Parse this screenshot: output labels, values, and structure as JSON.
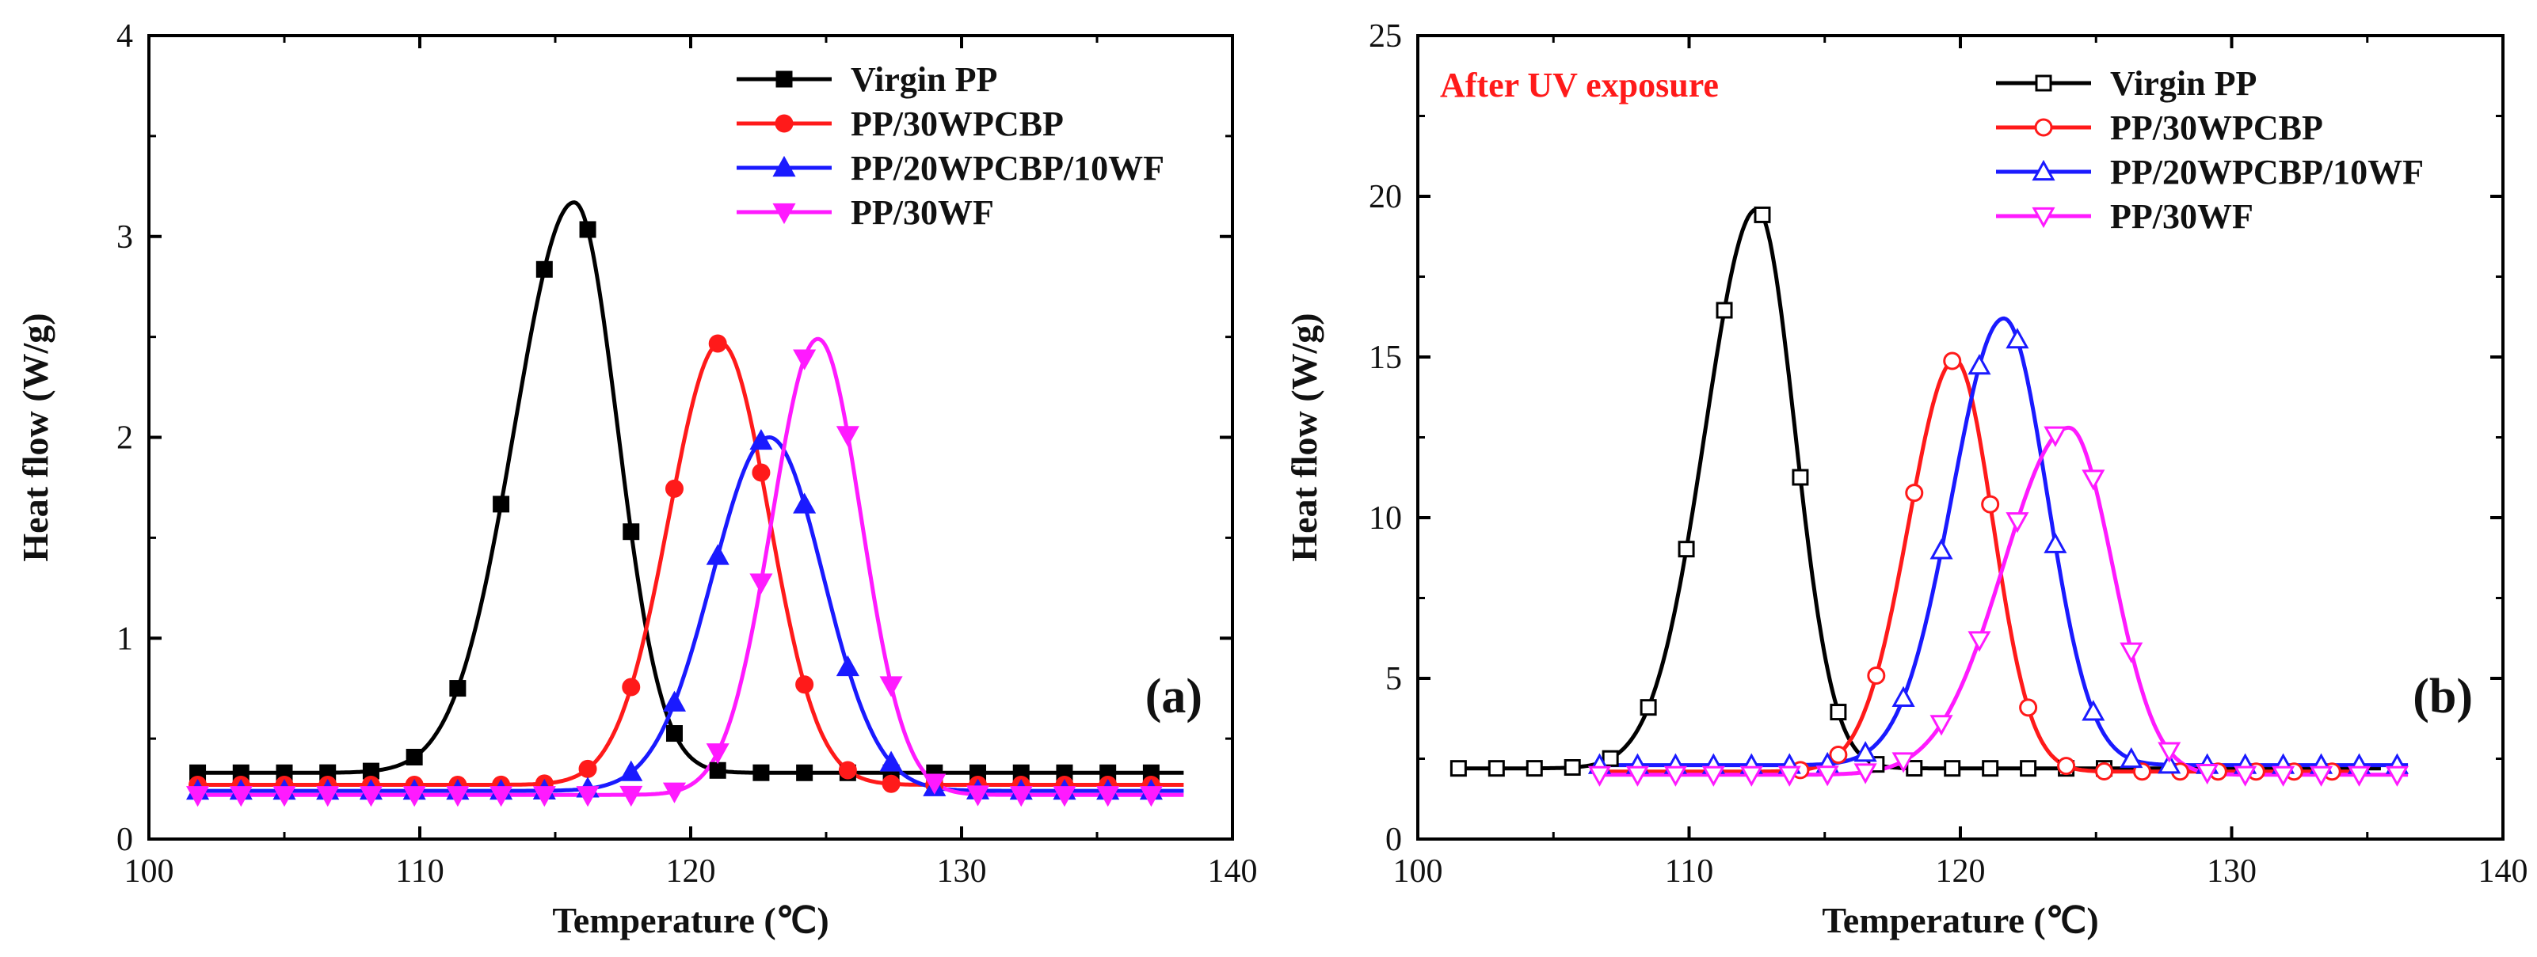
{
  "chart_data": [
    {
      "type": "line",
      "panel_label": "(a)",
      "annotation": "",
      "xlabel": "Temperature (℃)",
      "ylabel": "Heat flow (W/g)",
      "xlim": [
        100,
        140
      ],
      "ylim": [
        0,
        4
      ],
      "xticks": [
        "100",
        "110",
        "120",
        "130",
        "140"
      ],
      "yticks": [
        "0",
        "1",
        "2",
        "3",
        "4"
      ],
      "legend_position": "top-right",
      "series": [
        {
          "name": "Virgin PP",
          "color": "#000000",
          "marker": "square",
          "filled": true,
          "baseline": 0.33,
          "peak": 3.17,
          "peak_x": 115.7,
          "width_left": 2.2,
          "width_right": 1.6,
          "x_range": [
            101.8,
            138.2
          ],
          "marker_step": 1.6,
          "marker_x": [
            101.8,
            103.4,
            105.0,
            106.6,
            108.2,
            109.8,
            111.4,
            113.0,
            114.6,
            116.2,
            117.8,
            119.4,
            121.0,
            122.6,
            124.2,
            125.8,
            127.4,
            129.0,
            130.6,
            132.2,
            133.8,
            135.4,
            137.0
          ]
        },
        {
          "name": "PP/30WPCBP",
          "color": "#ff1a1a",
          "marker": "circle",
          "filled": true,
          "baseline": 0.27,
          "peak": 2.47,
          "peak_x": 121.1,
          "width_left": 1.9,
          "width_right": 1.8,
          "x_range": [
            101.8,
            138.2
          ],
          "marker_step": 1.6,
          "marker_x": [
            101.8,
            103.4,
            105.0,
            106.6,
            108.2,
            109.8,
            111.4,
            113.0,
            114.6,
            116.2,
            117.8,
            119.4,
            121.0,
            122.6,
            124.2,
            125.8,
            127.4,
            129.0,
            130.6,
            132.2,
            133.8,
            135.4,
            137.0
          ]
        },
        {
          "name": "PP/20WPCBP/10WF",
          "color": "#1a1aff",
          "marker": "triangle-up",
          "filled": true,
          "baseline": 0.24,
          "peak": 2.0,
          "peak_x": 122.9,
          "width_left": 2.1,
          "width_right": 2.0,
          "x_range": [
            101.8,
            138.2
          ],
          "marker_step": 1.6,
          "marker_x": [
            101.8,
            103.4,
            105.0,
            106.6,
            108.2,
            109.8,
            111.4,
            113.0,
            114.6,
            116.2,
            117.8,
            119.4,
            121.0,
            122.6,
            124.2,
            125.8,
            127.4,
            129.0,
            130.6,
            132.2,
            133.8,
            135.4,
            137.0
          ]
        },
        {
          "name": "PP/30WF",
          "color": "#ff1aff",
          "marker": "triangle-down",
          "filled": true,
          "baseline": 0.22,
          "peak": 2.49,
          "peak_x": 124.7,
          "width_left": 1.7,
          "width_right": 1.6,
          "x_range": [
            101.8,
            138.2
          ],
          "marker_step": 1.6,
          "marker_x": [
            101.8,
            103.4,
            105.0,
            106.6,
            108.2,
            109.8,
            111.4,
            113.0,
            114.6,
            116.2,
            117.8,
            119.4,
            121.0,
            122.6,
            124.2,
            125.8,
            127.4,
            129.0,
            130.6,
            132.2,
            133.8,
            135.4,
            137.0
          ]
        }
      ]
    },
    {
      "type": "line",
      "panel_label": "(b)",
      "annotation": "After UV exposure",
      "annotation_color": "#ff1a1a",
      "xlabel": "Temperature (℃)",
      "ylabel": "Heat flow (W/g)",
      "xlim": [
        100,
        140
      ],
      "ylim": [
        0,
        25
      ],
      "xticks": [
        "100",
        "110",
        "120",
        "130",
        "140"
      ],
      "yticks": [
        "0",
        "5",
        "10",
        "15",
        "20",
        "25"
      ],
      "legend_position": "top-right",
      "series": [
        {
          "name": "Virgin PP",
          "color": "#000000",
          "marker": "square",
          "filled": false,
          "baseline": 2.2,
          "peak": 19.6,
          "peak_x": 112.5,
          "width_left": 1.9,
          "width_right": 1.4,
          "x_range": [
            101.5,
            135.5
          ],
          "marker_step": 1.4,
          "marker_x": [
            101.5,
            102.9,
            104.3,
            105.7,
            107.1,
            108.5,
            109.9,
            111.3,
            112.7,
            114.1,
            115.5,
            116.9,
            118.3,
            119.7,
            121.1,
            122.5,
            123.9,
            125.3
          ]
        },
        {
          "name": "PP/30WPCBP",
          "color": "#ff1a1a",
          "marker": "circle",
          "filled": false,
          "baseline": 2.1,
          "peak": 14.9,
          "peak_x": 119.8,
          "width_left": 1.7,
          "width_right": 1.4,
          "x_range": [
            106.5,
            134.5
          ],
          "marker_step": 1.4,
          "marker_x": [
            114.1,
            115.5,
            116.9,
            118.3,
            119.7,
            121.1,
            122.5,
            123.9,
            125.3,
            126.7,
            128.1,
            129.5,
            130.9,
            132.3,
            133.7
          ]
        },
        {
          "name": "PP/20WPCBP/10WF",
          "color": "#1a1aff",
          "marker": "triangle-up",
          "filled": false,
          "baseline": 2.3,
          "peak": 16.2,
          "peak_x": 121.6,
          "width_left": 1.9,
          "width_right": 1.6,
          "x_range": [
            106.5,
            136.5
          ],
          "marker_step": 1.4,
          "marker_x": [
            106.7,
            108.1,
            109.5,
            110.9,
            112.3,
            113.7,
            115.1,
            116.5,
            117.9,
            119.3,
            120.7,
            122.1,
            123.5,
            124.9,
            126.3,
            127.7,
            129.1,
            130.5,
            131.9,
            133.3,
            134.7,
            136.1
          ]
        },
        {
          "name": "PP/30WF",
          "color": "#ff1aff",
          "marker": "triangle-down",
          "filled": false,
          "baseline": 2.0,
          "peak": 12.8,
          "peak_x": 124.0,
          "width_left": 2.4,
          "width_right": 1.6,
          "x_range": [
            106.5,
            136.5
          ],
          "marker_step": 1.4,
          "marker_x": [
            106.7,
            108.1,
            109.5,
            110.9,
            112.3,
            113.7,
            115.1,
            116.5,
            117.9,
            119.3,
            120.7,
            122.1,
            123.5,
            124.9,
            126.3,
            127.7,
            129.1,
            130.5,
            131.9,
            133.3,
            134.7,
            136.1
          ]
        }
      ]
    }
  ]
}
